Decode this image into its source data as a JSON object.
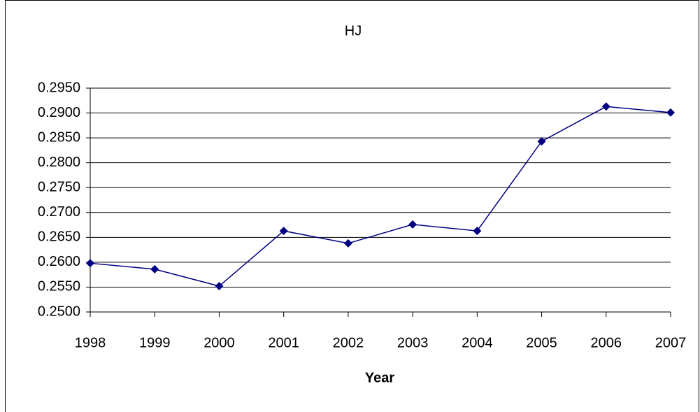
{
  "chart_data": {
    "type": "line",
    "title": "HJ",
    "x_label": "Year",
    "categories": [
      "1998",
      "1999",
      "2000",
      "2001",
      "2002",
      "2003",
      "2004",
      "2005",
      "2006",
      "2007"
    ],
    "series": [
      {
        "name": "HJ",
        "color": "#000080",
        "values": [
          0.2598,
          0.2586,
          0.2552,
          0.2663,
          0.2638,
          0.2676,
          0.2663,
          0.2843,
          0.2913,
          0.2901
        ]
      }
    ],
    "ylim": [
      0.25,
      0.295
    ],
    "yticks": [
      {
        "value": 0.25,
        "label": "0.2500"
      },
      {
        "value": 0.255,
        "label": "0.2550"
      },
      {
        "value": 0.26,
        "label": "0.2600"
      },
      {
        "value": 0.265,
        "label": "0.2650"
      },
      {
        "value": 0.27,
        "label": "0.2700"
      },
      {
        "value": 0.275,
        "label": "0.2750"
      },
      {
        "value": 0.28,
        "label": "0.2800"
      },
      {
        "value": 0.285,
        "label": "0.2850"
      },
      {
        "value": 0.29,
        "label": "0.2900"
      },
      {
        "value": 0.295,
        "label": "0.2950"
      }
    ],
    "grid": true
  }
}
